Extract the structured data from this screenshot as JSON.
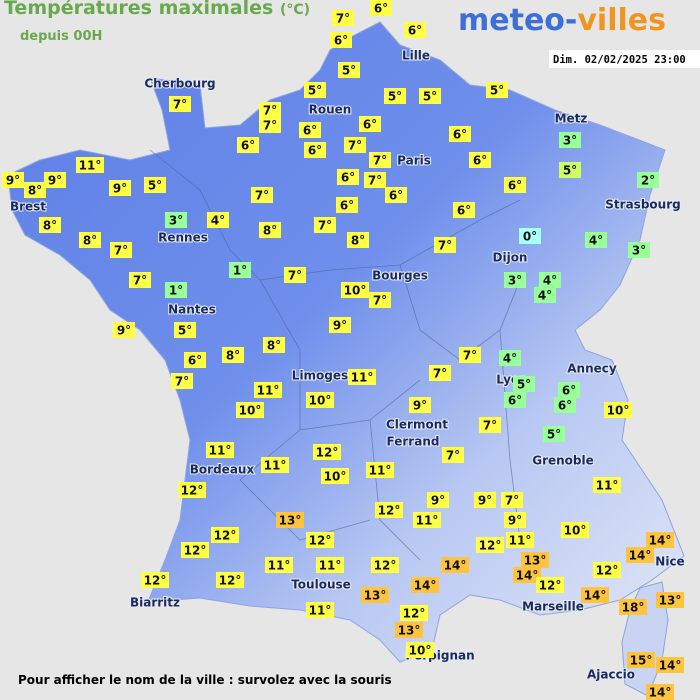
{
  "header": {
    "title": "Températures maximales",
    "unit": "(°C)",
    "subtitle": "depuis 00H",
    "logo": {
      "part1": "meteo-",
      "part2": "villes"
    },
    "date": "Dim. 02/02/2025 23:00"
  },
  "footer": "Pour afficher le nom de la ville : survolez avec la souris",
  "cities": [
    "Lille",
    "Cherbourg",
    "Rouen",
    "Metz",
    "Paris",
    "Brest",
    "Strasbourg",
    "Rennes",
    "Dijon",
    "Bourges",
    "Nantes",
    "Lyon",
    "Annecy",
    "Limoges",
    "Clermont",
    "Ferrand",
    "Grenoble",
    "Bordeaux",
    "Nice",
    "Toulouse",
    "Biarritz",
    "Marseille",
    "Perpignan",
    "Ajaccio"
  ],
  "stations": [
    {
      "temp": "7°",
      "color": "#ffff44"
    },
    {
      "temp": "6°",
      "color": "#ffff44"
    },
    {
      "temp": "6°",
      "color": "#ffff44"
    },
    {
      "temp": "6°",
      "color": "#ffff44"
    },
    {
      "temp": "5°",
      "color": "#ffff44"
    },
    {
      "temp": "7°",
      "color": "#ffff44"
    },
    {
      "temp": "5°",
      "color": "#ffff44"
    },
    {
      "temp": "7°",
      "color": "#ffff44"
    },
    {
      "temp": "7°",
      "color": "#ffff44"
    },
    {
      "temp": "5°",
      "color": "#ffff44"
    },
    {
      "temp": "5°",
      "color": "#ffff44"
    },
    {
      "temp": "5°",
      "color": "#ffff44"
    },
    {
      "temp": "6°",
      "color": "#ffff44"
    },
    {
      "temp": "6°",
      "color": "#ffff44"
    },
    {
      "temp": "6°",
      "color": "#ffff44"
    },
    {
      "temp": "6°",
      "color": "#ffff44"
    },
    {
      "temp": "7°",
      "color": "#ffff44"
    },
    {
      "temp": "6°",
      "color": "#ffff44"
    },
    {
      "temp": "3°",
      "color": "#99ff99"
    },
    {
      "temp": "11°",
      "color": "#ffff44"
    },
    {
      "temp": "7°",
      "color": "#ffff44"
    },
    {
      "temp": "6°",
      "color": "#ffff44"
    },
    {
      "temp": "5°",
      "color": "#ccff66"
    },
    {
      "temp": "9°",
      "color": "#ffff44"
    },
    {
      "temp": "9°",
      "color": "#ffff44"
    },
    {
      "temp": "8°",
      "color": "#ffff44"
    },
    {
      "temp": "9°",
      "color": "#ffff44"
    },
    {
      "temp": "5°",
      "color": "#ffff44"
    },
    {
      "temp": "6°",
      "color": "#ffff44"
    },
    {
      "temp": "7°",
      "color": "#ffff44"
    },
    {
      "temp": "6°",
      "color": "#ffff44"
    },
    {
      "temp": "2°",
      "color": "#99ff99"
    },
    {
      "temp": "7°",
      "color": "#ffff44"
    },
    {
      "temp": "6°",
      "color": "#ffff44"
    },
    {
      "temp": "6°",
      "color": "#ffff44"
    },
    {
      "temp": "6°",
      "color": "#ffff44"
    },
    {
      "temp": "8°",
      "color": "#ffff44"
    },
    {
      "temp": "3°",
      "color": "#99ff99"
    },
    {
      "temp": "4°",
      "color": "#ffff44"
    },
    {
      "temp": "8°",
      "color": "#ffff44"
    },
    {
      "temp": "7°",
      "color": "#ffff44"
    },
    {
      "temp": "8°",
      "color": "#ffff44"
    },
    {
      "temp": "7°",
      "color": "#ffff44"
    },
    {
      "temp": "8°",
      "color": "#ffff44"
    },
    {
      "temp": "7°",
      "color": "#ffff44"
    },
    {
      "temp": "0°",
      "color": "#aaffff"
    },
    {
      "temp": "4°",
      "color": "#99ff99"
    },
    {
      "temp": "3°",
      "color": "#99ff99"
    },
    {
      "temp": "1°",
      "color": "#99ff99"
    },
    {
      "temp": "7°",
      "color": "#ffff44"
    },
    {
      "temp": "7°",
      "color": "#ffff44"
    },
    {
      "temp": "1°",
      "color": "#99ff99"
    },
    {
      "temp": "3°",
      "color": "#99ff99"
    },
    {
      "temp": "4°",
      "color": "#99ff99"
    },
    {
      "temp": "4°",
      "color": "#99ff99"
    },
    {
      "temp": "10°",
      "color": "#ffff44"
    },
    {
      "temp": "7°",
      "color": "#ffff44"
    },
    {
      "temp": "9°",
      "color": "#ffff44"
    },
    {
      "temp": "5°",
      "color": "#ffff44"
    },
    {
      "temp": "9°",
      "color": "#ffff44"
    },
    {
      "temp": "6°",
      "color": "#ffff44"
    },
    {
      "temp": "8°",
      "color": "#ffff44"
    },
    {
      "temp": "8°",
      "color": "#ffff44"
    },
    {
      "temp": "7°",
      "color": "#ffff44"
    },
    {
      "temp": "4°",
      "color": "#99ff99"
    },
    {
      "temp": "7°",
      "color": "#ffff44"
    },
    {
      "temp": "11°",
      "color": "#ffff44"
    },
    {
      "temp": "11°",
      "color": "#ffff44"
    },
    {
      "temp": "7°",
      "color": "#ffff44"
    },
    {
      "temp": "5°",
      "color": "#99ff99"
    },
    {
      "temp": "6°",
      "color": "#99ff99"
    },
    {
      "temp": "6°",
      "color": "#99ff99"
    },
    {
      "temp": "10°",
      "color": "#ffff44"
    },
    {
      "temp": "10°",
      "color": "#ffff44"
    },
    {
      "temp": "9°",
      "color": "#ffff44"
    },
    {
      "temp": "6°",
      "color": "#99ff99"
    },
    {
      "temp": "10°",
      "color": "#ffff44"
    },
    {
      "temp": "7°",
      "color": "#ffff44"
    },
    {
      "temp": "5°",
      "color": "#99ff99"
    },
    {
      "temp": "7°",
      "color": "#ffff44"
    },
    {
      "temp": "11°",
      "color": "#ffff44"
    },
    {
      "temp": "12°",
      "color": "#ffff44"
    },
    {
      "temp": "11°",
      "color": "#ffff44"
    },
    {
      "temp": "11°",
      "color": "#ffff44"
    },
    {
      "temp": "10°",
      "color": "#ffff44"
    },
    {
      "temp": "12°",
      "color": "#ffff44"
    },
    {
      "temp": "11°",
      "color": "#ffff44"
    },
    {
      "temp": "9°",
      "color": "#ffff44"
    },
    {
      "temp": "9°",
      "color": "#ffff44"
    },
    {
      "temp": "7°",
      "color": "#ffff44"
    },
    {
      "temp": "12°",
      "color": "#ffff44"
    },
    {
      "temp": "11°",
      "color": "#ffff44"
    },
    {
      "temp": "13°",
      "color": "#ffc43d"
    },
    {
      "temp": "9°",
      "color": "#ffff44"
    },
    {
      "temp": "10°",
      "color": "#ffff44"
    },
    {
      "temp": "12°",
      "color": "#ffff44"
    },
    {
      "temp": "12°",
      "color": "#ffff44"
    },
    {
      "temp": "12°",
      "color": "#ffff44"
    },
    {
      "temp": "11°",
      "color": "#ffff44"
    },
    {
      "temp": "14°",
      "color": "#ffc43d"
    },
    {
      "temp": "12°",
      "color": "#ffff44"
    },
    {
      "temp": "14°",
      "color": "#ffc43d"
    },
    {
      "temp": "13°",
      "color": "#ffc43d"
    },
    {
      "temp": "14°",
      "color": "#ffc43d"
    },
    {
      "temp": "11°",
      "color": "#ffff44"
    },
    {
      "temp": "11°",
      "color": "#ffff44"
    },
    {
      "temp": "12°",
      "color": "#ffff44"
    },
    {
      "temp": "14°",
      "color": "#ffc43d"
    },
    {
      "temp": "12°",
      "color": "#ffff44"
    },
    {
      "temp": "12°",
      "color": "#ffff44"
    },
    {
      "temp": "12°",
      "color": "#ffff44"
    },
    {
      "temp": "14°",
      "color": "#ffc43d"
    },
    {
      "temp": "12°",
      "color": "#ffff44"
    },
    {
      "temp": "13°",
      "color": "#ffc43d"
    },
    {
      "temp": "14°",
      "color": "#ffc43d"
    },
    {
      "temp": "18°",
      "color": "#ffc43d"
    },
    {
      "temp": "13°",
      "color": "#ffc43d"
    },
    {
      "temp": "11°",
      "color": "#ffff44"
    },
    {
      "temp": "12°",
      "color": "#ffff44"
    },
    {
      "temp": "13°",
      "color": "#ffc43d"
    },
    {
      "temp": "10°",
      "color": "#ffff44"
    },
    {
      "temp": "15°",
      "color": "#ffc43d"
    },
    {
      "temp": "14°",
      "color": "#ffc43d"
    },
    {
      "temp": "14°",
      "color": "#ffc43d"
    }
  ]
}
